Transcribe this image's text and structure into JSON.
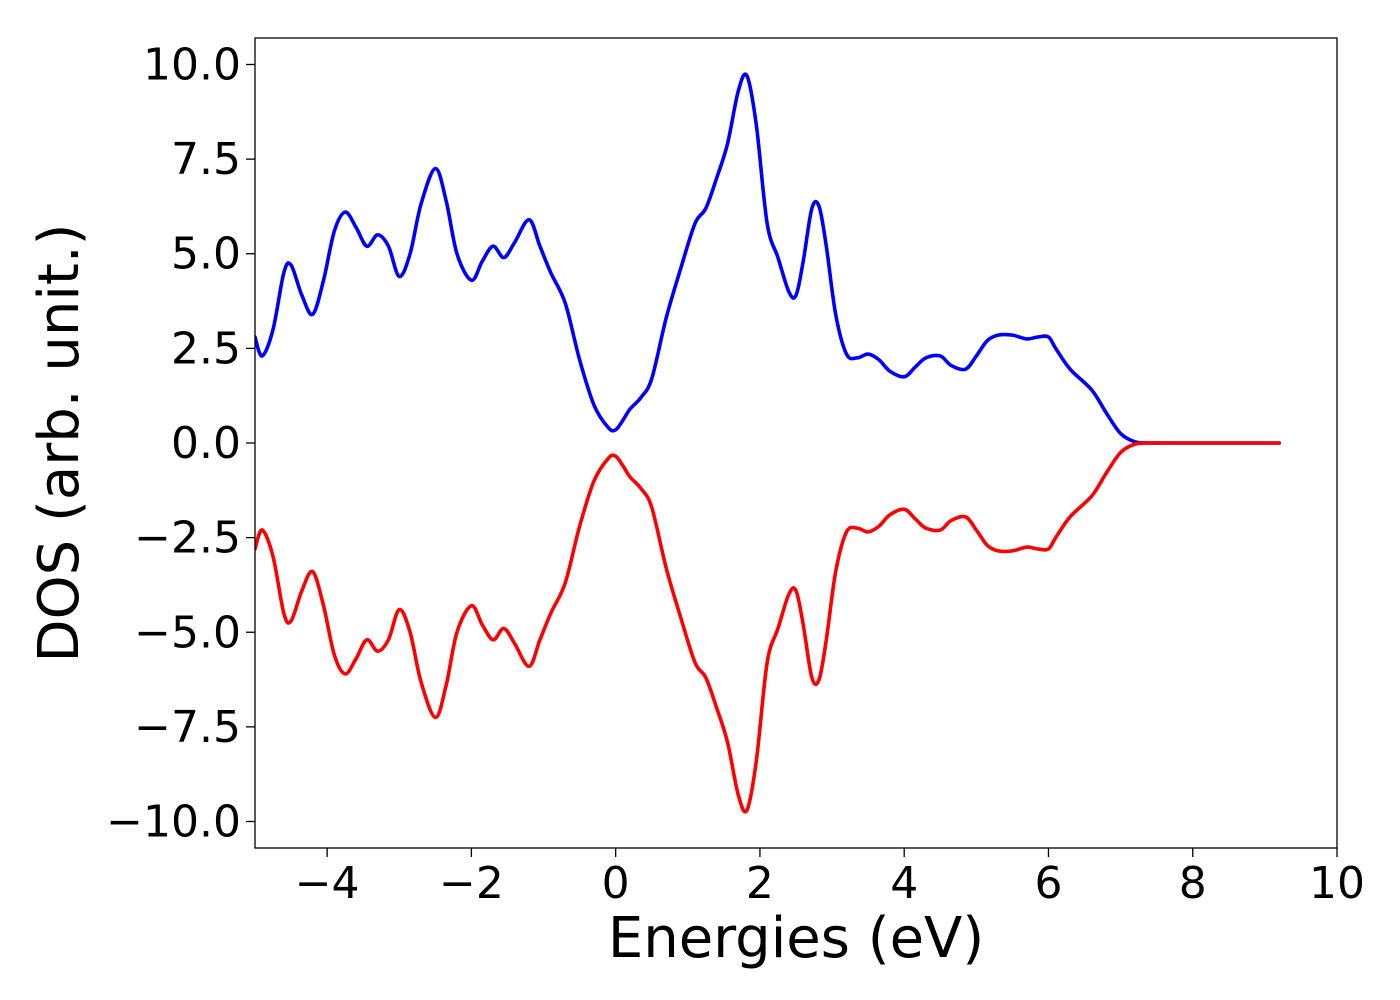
{
  "chart_data": {
    "type": "line",
    "title": "",
    "xlabel": "Energies (eV)",
    "ylabel": "DOS (arb. unit.)",
    "xlim": [
      -5,
      10
    ],
    "ylim": [
      -10.7,
      10.7
    ],
    "xticks": [
      -4,
      -2,
      0,
      2,
      4,
      6,
      8,
      10
    ],
    "xtick_labels": [
      "−4",
      "−2",
      "0",
      "2",
      "4",
      "6",
      "8",
      "10"
    ],
    "yticks": [
      10,
      7.5,
      5,
      2.5,
      0,
      -2.5,
      -5,
      -7.5,
      -10
    ],
    "ytick_labels": [
      "10.0",
      "7.5",
      "5.0",
      "2.5",
      "0.0",
      "−2.5",
      "−5.0",
      "−7.5",
      "−10.0"
    ],
    "grid": false,
    "legend": "none",
    "series": [
      {
        "color": "#0000ff",
        "x": [
          -5.0,
          -4.9,
          -4.75,
          -4.6,
          -4.5,
          -4.35,
          -4.2,
          -4.05,
          -3.9,
          -3.75,
          -3.6,
          -3.45,
          -3.3,
          -3.15,
          -3.0,
          -2.85,
          -2.7,
          -2.5,
          -2.35,
          -2.2,
          -2.0,
          -1.85,
          -1.7,
          -1.55,
          -1.4,
          -1.2,
          -1.05,
          -0.9,
          -0.7,
          -0.5,
          -0.3,
          -0.1,
          0.0,
          0.1,
          0.2,
          0.35,
          0.5,
          0.7,
          0.9,
          1.1,
          1.25,
          1.4,
          1.55,
          1.7,
          1.82,
          1.95,
          2.1,
          2.25,
          2.4,
          2.5,
          2.6,
          2.72,
          2.82,
          2.92,
          3.05,
          3.2,
          3.35,
          3.5,
          3.65,
          3.8,
          4.0,
          4.15,
          4.3,
          4.5,
          4.65,
          4.85,
          5.0,
          5.15,
          5.3,
          5.5,
          5.7,
          5.85,
          6.0,
          6.1,
          6.3,
          6.6,
          6.8,
          7.0,
          7.2,
          7.4,
          7.6,
          8.0,
          8.5,
          9.2
        ],
        "y": [
          2.8,
          2.3,
          3.0,
          4.5,
          4.7,
          3.9,
          3.4,
          4.3,
          5.6,
          6.1,
          5.7,
          5.2,
          5.5,
          5.2,
          4.4,
          5.0,
          6.3,
          7.25,
          6.4,
          5.0,
          4.3,
          4.8,
          5.2,
          4.9,
          5.3,
          5.9,
          5.2,
          4.5,
          3.7,
          2.2,
          1.0,
          0.4,
          0.35,
          0.6,
          0.9,
          1.2,
          1.7,
          3.3,
          4.6,
          5.8,
          6.2,
          7.0,
          7.9,
          9.3,
          9.7,
          8.4,
          5.8,
          4.9,
          4.0,
          3.9,
          4.8,
          6.2,
          6.25,
          5.2,
          3.4,
          2.35,
          2.25,
          2.35,
          2.2,
          1.9,
          1.75,
          2.0,
          2.25,
          2.3,
          2.05,
          1.95,
          2.3,
          2.7,
          2.85,
          2.85,
          2.75,
          2.8,
          2.8,
          2.5,
          1.95,
          1.4,
          0.8,
          0.25,
          0.03,
          0.0,
          0.0,
          0.0,
          0.0,
          0.0
        ]
      },
      {
        "color": "#ff0000",
        "x": [
          -5.0,
          -4.9,
          -4.75,
          -4.6,
          -4.5,
          -4.35,
          -4.2,
          -4.05,
          -3.9,
          -3.75,
          -3.6,
          -3.45,
          -3.3,
          -3.15,
          -3.0,
          -2.85,
          -2.7,
          -2.5,
          -2.35,
          -2.2,
          -2.0,
          -1.85,
          -1.7,
          -1.55,
          -1.4,
          -1.2,
          -1.05,
          -0.9,
          -0.7,
          -0.5,
          -0.3,
          -0.1,
          0.0,
          0.1,
          0.2,
          0.35,
          0.5,
          0.7,
          0.9,
          1.1,
          1.25,
          1.4,
          1.55,
          1.7,
          1.82,
          1.95,
          2.1,
          2.25,
          2.4,
          2.5,
          2.6,
          2.72,
          2.82,
          2.92,
          3.05,
          3.2,
          3.35,
          3.5,
          3.65,
          3.8,
          4.0,
          4.15,
          4.3,
          4.5,
          4.65,
          4.85,
          5.0,
          5.15,
          5.3,
          5.5,
          5.7,
          5.85,
          6.0,
          6.1,
          6.3,
          6.6,
          6.8,
          7.0,
          7.2,
          7.4,
          7.6,
          8.0,
          8.5,
          9.2
        ],
        "y": [
          -2.8,
          -2.3,
          -3.0,
          -4.5,
          -4.7,
          -3.9,
          -3.4,
          -4.3,
          -5.6,
          -6.1,
          -5.7,
          -5.2,
          -5.5,
          -5.2,
          -4.4,
          -5.0,
          -6.3,
          -7.25,
          -6.4,
          -5.0,
          -4.3,
          -4.8,
          -5.2,
          -4.9,
          -5.3,
          -5.9,
          -5.2,
          -4.5,
          -3.7,
          -2.2,
          -1.0,
          -0.4,
          -0.35,
          -0.6,
          -0.9,
          -1.2,
          -1.7,
          -3.3,
          -4.6,
          -5.8,
          -6.2,
          -7.0,
          -7.9,
          -9.3,
          -9.7,
          -8.4,
          -5.8,
          -4.9,
          -4.0,
          -3.9,
          -4.8,
          -6.2,
          -6.25,
          -5.2,
          -3.4,
          -2.35,
          -2.25,
          -2.35,
          -2.2,
          -1.9,
          -1.75,
          -2.0,
          -2.25,
          -2.3,
          -2.05,
          -1.95,
          -2.3,
          -2.7,
          -2.85,
          -2.85,
          -2.75,
          -2.8,
          -2.8,
          -2.5,
          -1.95,
          -1.4,
          -0.8,
          -0.25,
          -0.03,
          0.0,
          0.0,
          0.0,
          0.0,
          0.0
        ]
      }
    ]
  }
}
